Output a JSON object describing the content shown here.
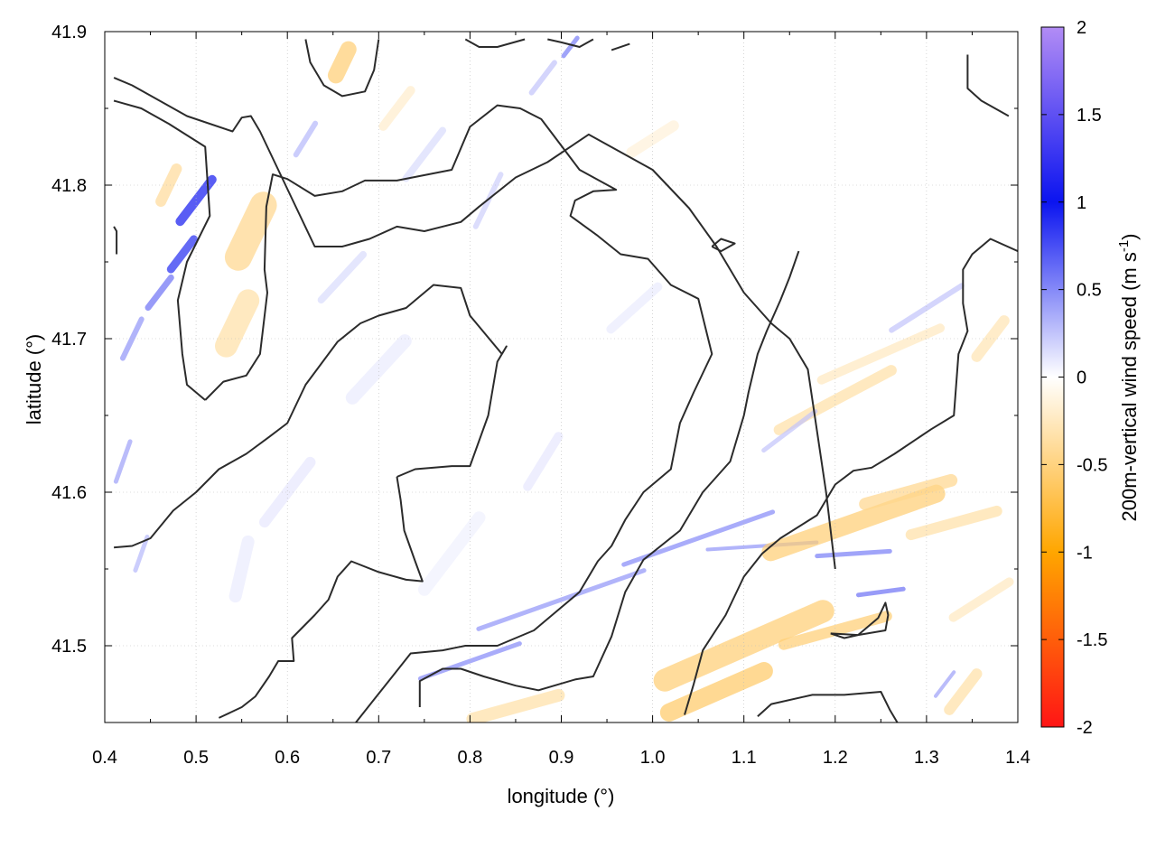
{
  "chart_data": {
    "type": "heatmap",
    "title": "",
    "xlabel": "longitude (°)",
    "ylabel": "latitude (°)",
    "colorbar_label": "200m-vertical wind speed (m s",
    "colorbar_label_sup": "-1",
    "colorbar_label_close": ")",
    "xlim": [
      0.4,
      1.4
    ],
    "ylim": [
      41.45,
      41.9
    ],
    "x_ticks": [
      0.4,
      0.5,
      0.6,
      0.7,
      0.8,
      0.9,
      1.0,
      1.1,
      1.2,
      1.3,
      1.4
    ],
    "x_tick_labels": [
      "0.4",
      "0.5",
      "0.6",
      "0.7",
      "0.8",
      "0.9",
      "1.0",
      "1.1",
      "1.2",
      "1.3",
      "1.4"
    ],
    "y_ticks": [
      41.5,
      41.6,
      41.7,
      41.8,
      41.9
    ],
    "y_tick_labels": [
      "41.5",
      "41.6",
      "41.7",
      "41.8",
      "41.9"
    ],
    "colorbar_range": [
      -2,
      2
    ],
    "colorbar_ticks": [
      2,
      1.5,
      1,
      0.5,
      0,
      -0.5,
      -1,
      -1.5,
      -2
    ],
    "colorbar_tick_labels": [
      "2",
      "1.5",
      "1",
      "0.5",
      "0",
      "-0.5",
      "-1",
      "-1.5",
      "-2"
    ],
    "colormap": [
      {
        "value": 2,
        "color": "#b28cf5"
      },
      {
        "value": 1,
        "color": "#0b14f0"
      },
      {
        "value": 0,
        "color": "#ffffff"
      },
      {
        "value": -1,
        "color": "#ffa600"
      },
      {
        "value": -2,
        "color": "#ff1515"
      }
    ],
    "grid": true,
    "contour_color": "#2b2b2b",
    "contours": [
      [
        [
          0.41,
          41.87
        ],
        [
          0.43,
          41.865
        ],
        [
          0.46,
          41.855
        ],
        [
          0.49,
          41.845
        ],
        [
          0.54,
          41.835
        ],
        [
          0.55,
          41.844
        ],
        [
          0.56,
          41.845
        ],
        [
          0.57,
          41.835
        ],
        [
          0.59,
          41.81
        ],
        [
          0.61,
          41.785
        ],
        [
          0.63,
          41.76
        ],
        [
          0.66,
          41.76
        ],
        [
          0.69,
          41.765
        ],
        [
          0.72,
          41.773
        ],
        [
          0.75,
          41.77
        ],
        [
          0.79,
          41.776
        ],
        [
          0.81,
          41.786
        ],
        [
          0.85,
          41.805
        ],
        [
          0.885,
          41.815
        ],
        [
          0.93,
          41.833
        ],
        [
          1.0,
          41.81
        ],
        [
          1.04,
          41.785
        ],
        [
          1.07,
          41.76
        ],
        [
          1.1,
          41.73
        ],
        [
          1.13,
          41.71
        ],
        [
          1.15,
          41.7
        ],
        [
          1.17,
          41.68
        ],
        [
          1.19,
          41.6
        ],
        [
          1.2,
          41.55
        ]
      ],
      [
        [
          0.41,
          41.855
        ],
        [
          0.44,
          41.85
        ],
        [
          0.47,
          41.84
        ],
        [
          0.51,
          41.825
        ],
        [
          0.515,
          41.78
        ],
        [
          0.49,
          41.75
        ],
        [
          0.48,
          41.725
        ],
        [
          0.485,
          41.69
        ],
        [
          0.49,
          41.67
        ],
        [
          0.51,
          41.66
        ]
      ],
      [
        [
          0.51,
          41.66
        ],
        [
          0.53,
          41.672
        ],
        [
          0.555,
          41.676
        ],
        [
          0.57,
          41.69
        ],
        [
          0.578,
          41.73
        ],
        [
          0.575,
          41.745
        ],
        [
          0.577,
          41.786
        ],
        [
          0.584,
          41.807
        ],
        [
          0.6,
          41.804
        ],
        [
          0.63,
          41.793
        ],
        [
          0.66,
          41.796
        ],
        [
          0.685,
          41.803
        ],
        [
          0.72,
          41.803
        ],
        [
          0.78,
          41.81
        ],
        [
          0.8,
          41.838
        ],
        [
          0.83,
          41.852
        ],
        [
          0.855,
          41.85
        ],
        [
          0.878,
          41.843
        ],
        [
          0.92,
          41.81
        ],
        [
          0.96,
          41.797
        ],
        [
          0.935,
          41.796
        ],
        [
          0.915,
          41.79
        ],
        [
          0.91,
          41.78
        ],
        [
          0.94,
          41.767
        ],
        [
          0.965,
          41.755
        ],
        [
          0.995,
          41.752
        ],
        [
          1.02,
          41.735
        ],
        [
          1.05,
          41.726
        ],
        [
          1.065,
          41.69
        ],
        [
          1.045,
          41.665
        ],
        [
          1.03,
          41.645
        ],
        [
          1.02,
          41.615
        ],
        [
          0.99,
          41.6
        ],
        [
          0.97,
          41.582
        ],
        [
          0.955,
          41.565
        ],
        [
          0.94,
          41.555
        ],
        [
          0.92,
          41.535
        ],
        [
          0.89,
          41.52
        ],
        [
          0.87,
          41.51
        ],
        [
          0.83,
          41.5
        ],
        [
          0.795,
          41.5
        ],
        [
          0.77,
          41.497
        ],
        [
          0.735,
          41.495
        ],
        [
          0.715,
          41.48
        ],
        [
          0.695,
          41.465
        ],
        [
          0.675,
          41.45
        ]
      ],
      [
        [
          0.72,
          41.61
        ],
        [
          0.74,
          41.615
        ],
        [
          0.78,
          41.617
        ],
        [
          0.8,
          41.617
        ],
        [
          0.82,
          41.65
        ],
        [
          0.83,
          41.685
        ],
        [
          0.84,
          41.695
        ],
        [
          0.835,
          41.69
        ],
        [
          0.8,
          41.715
        ],
        [
          0.79,
          41.733
        ],
        [
          0.76,
          41.735
        ],
        [
          0.73,
          41.72
        ],
        [
          0.7,
          41.715
        ],
        [
          0.68,
          41.71
        ],
        [
          0.655,
          41.698
        ],
        [
          0.62,
          41.67
        ],
        [
          0.6,
          41.645
        ],
        [
          0.58,
          41.636
        ],
        [
          0.555,
          41.625
        ],
        [
          0.525,
          41.615
        ],
        [
          0.5,
          41.6
        ],
        [
          0.475,
          41.588
        ],
        [
          0.45,
          41.57
        ],
        [
          0.43,
          41.565
        ],
        [
          0.41,
          41.564
        ]
      ],
      [
        [
          0.72,
          41.61
        ],
        [
          0.724,
          41.595
        ],
        [
          0.728,
          41.575
        ],
        [
          0.74,
          41.555
        ],
        [
          0.748,
          41.542
        ],
        [
          0.73,
          41.543
        ],
        [
          0.7,
          41.548
        ],
        [
          0.67,
          41.555
        ],
        [
          0.655,
          41.545
        ],
        [
          0.645,
          41.53
        ],
        [
          0.63,
          41.52
        ],
        [
          0.605,
          41.505
        ],
        [
          0.607,
          41.49
        ],
        [
          0.59,
          41.49
        ],
        [
          0.58,
          41.48
        ],
        [
          0.565,
          41.467
        ],
        [
          0.55,
          41.46
        ],
        [
          0.525,
          41.453
        ]
      ],
      [
        [
          0.745,
          41.46
        ],
        [
          0.745,
          41.477
        ],
        [
          0.77,
          41.485
        ],
        [
          0.79,
          41.485
        ],
        [
          0.815,
          41.48
        ],
        [
          0.85,
          41.474
        ],
        [
          0.875,
          41.471
        ],
        [
          0.915,
          41.478
        ],
        [
          0.935,
          41.48
        ],
        [
          0.955,
          41.506
        ],
        [
          0.97,
          41.535
        ],
        [
          0.99,
          41.556
        ],
        [
          1.03,
          41.575
        ],
        [
          1.055,
          41.6
        ],
        [
          1.085,
          41.62
        ],
        [
          1.1,
          41.65
        ],
        [
          1.105,
          41.665
        ],
        [
          1.115,
          41.69
        ],
        [
          1.125,
          41.705
        ],
        [
          1.14,
          41.725
        ],
        [
          1.15,
          41.74
        ],
        [
          1.16,
          41.757
        ]
      ],
      [
        [
          1.035,
          41.455
        ],
        [
          1.045,
          41.475
        ],
        [
          1.055,
          41.497
        ],
        [
          1.08,
          41.52
        ],
        [
          1.1,
          41.545
        ],
        [
          1.12,
          41.56
        ],
        [
          1.14,
          41.57
        ],
        [
          1.18,
          41.585
        ],
        [
          1.2,
          41.605
        ],
        [
          1.22,
          41.614
        ],
        [
          1.24,
          41.616
        ],
        [
          1.265,
          41.625
        ],
        [
          1.305,
          41.641
        ],
        [
          1.33,
          41.65
        ],
        [
          1.335,
          41.69
        ],
        [
          1.345,
          41.705
        ],
        [
          1.34,
          41.723
        ],
        [
          1.34,
          41.745
        ],
        [
          1.35,
          41.755
        ],
        [
          1.37,
          41.765
        ],
        [
          1.4,
          41.757
        ]
      ],
      [
        [
          1.115,
          41.454
        ],
        [
          1.13,
          41.462
        ],
        [
          1.175,
          41.468
        ],
        [
          1.21,
          41.468
        ],
        [
          1.25,
          41.47
        ],
        [
          1.26,
          41.458
        ],
        [
          1.27,
          41.448
        ]
      ],
      [
        [
          1.195,
          41.508
        ],
        [
          1.225,
          41.507
        ],
        [
          1.255,
          41.51
        ],
        [
          1.258,
          41.52
        ],
        [
          1.255,
          41.528
        ],
        [
          1.247,
          41.518
        ],
        [
          1.225,
          41.507
        ],
        [
          1.21,
          41.505
        ],
        [
          1.195,
          41.508
        ]
      ],
      [
        [
          1.065,
          41.76
        ],
        [
          1.075,
          41.765
        ],
        [
          1.09,
          41.762
        ],
        [
          1.075,
          41.757
        ],
        [
          1.065,
          41.76
        ]
      ],
      [
        [
          0.62,
          41.895
        ],
        [
          0.625,
          41.88
        ],
        [
          0.64,
          41.865
        ],
        [
          0.66,
          41.858
        ],
        [
          0.685,
          41.861
        ],
        [
          0.695,
          41.875
        ],
        [
          0.7,
          41.895
        ]
      ],
      [
        [
          0.795,
          41.895
        ],
        [
          0.81,
          41.89
        ],
        [
          0.83,
          41.89
        ],
        [
          0.86,
          41.895
        ]
      ],
      [
        [
          0.885,
          41.895
        ],
        [
          0.9,
          41.893
        ],
        [
          0.92,
          41.89
        ],
        [
          0.935,
          41.895
        ]
      ],
      [
        [
          0.955,
          41.888
        ],
        [
          0.975,
          41.892
        ]
      ],
      [
        [
          1.345,
          41.885
        ],
        [
          1.345,
          41.863
        ],
        [
          1.36,
          41.855
        ],
        [
          1.39,
          41.845
        ]
      ],
      [
        [
          0.41,
          41.773
        ],
        [
          0.413,
          41.77
        ],
        [
          0.413,
          41.755
        ]
      ],
      [
        [
          0.74,
          41.452
        ]
      ]
    ]
  }
}
